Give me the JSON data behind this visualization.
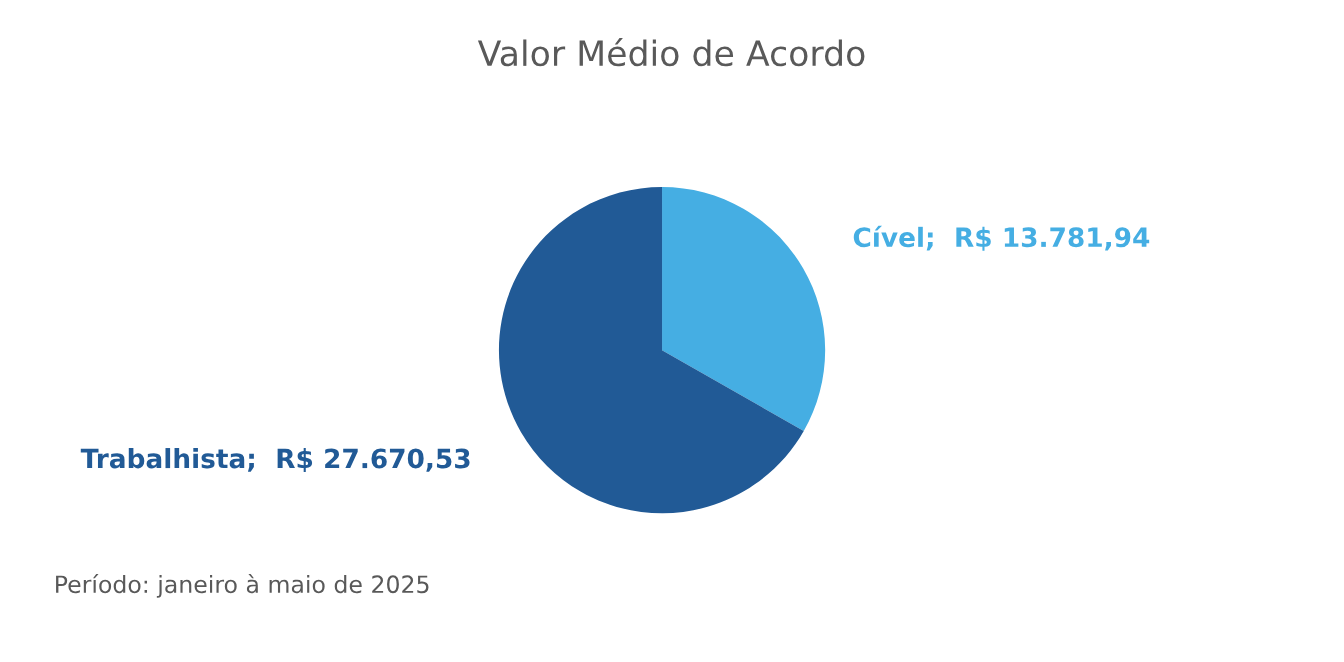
{
  "chart_data": {
    "type": "pie",
    "title": "Valor Médio de Acordo",
    "categories": [
      "Cível",
      "Trabalhista"
    ],
    "values": [
      13781.94,
      27670.53
    ],
    "colors": [
      "#45aee3",
      "#215a96"
    ],
    "value_labels": [
      "R$ 13.781,94",
      "R$ 27.670,53"
    ],
    "annotations": [
      "Período: janeiro à maio de 2025"
    ],
    "legend": false
  }
}
